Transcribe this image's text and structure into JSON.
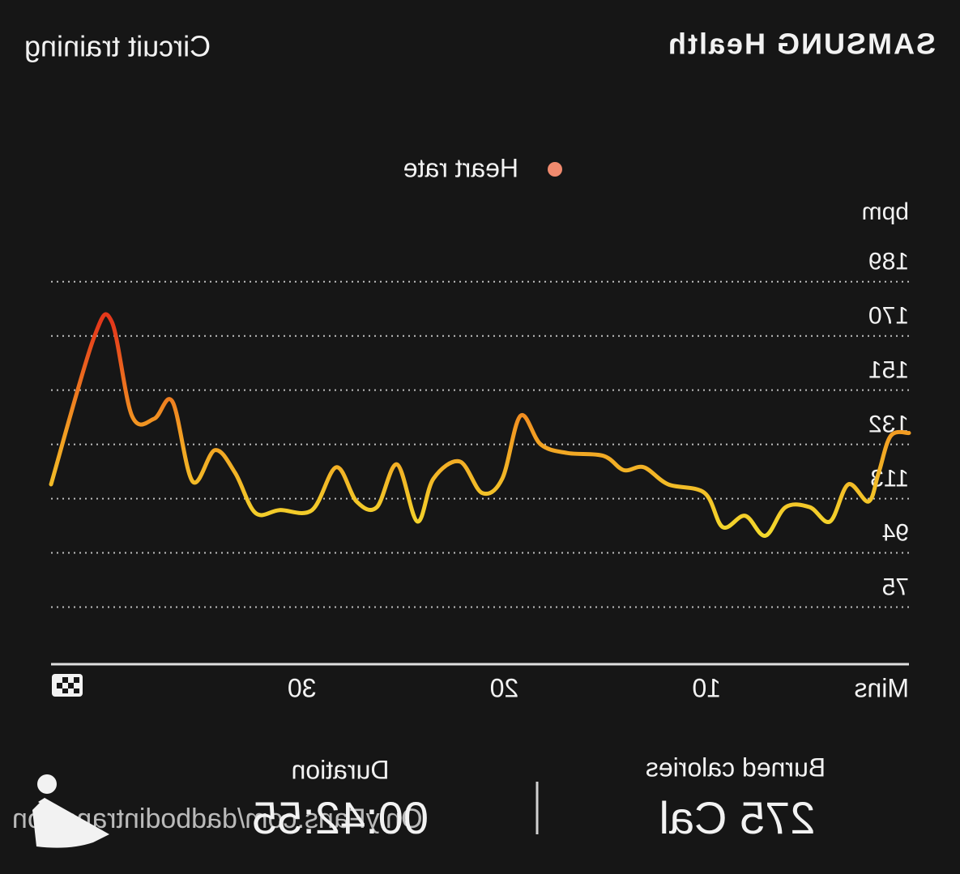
{
  "header": {
    "app": "SAMSUNG Health",
    "workout": "Circuit training"
  },
  "chart_data": {
    "type": "line",
    "y_label": "bpm",
    "x_label": "Mins",
    "x": [
      0,
      0.9,
      1.5,
      2.0,
      3.0,
      3.9,
      4.9,
      6.1,
      7.1,
      8.1,
      9.2,
      10.1,
      11.9,
      13.1,
      14.1,
      15.1,
      16.9,
      18.2,
      19.2,
      20.1,
      21.1,
      22.2,
      23.5,
      24.3,
      25.3,
      26.3,
      27.3,
      28.3,
      29.5,
      31.1,
      32.3,
      33.3,
      34.3,
      35.4,
      36.4,
      37.3,
      38.4,
      39.4,
      40.3,
      42.4
    ],
    "series": [
      {
        "name": "Heart rate",
        "color": "#f08a6e",
        "values": [
          136,
          135,
          122,
          112,
          118,
          105,
          110,
          110,
          100,
          107,
          103,
          115,
          118,
          124,
          123,
          128,
          129,
          132,
          142,
          120,
          115,
          126,
          120,
          105,
          125,
          110,
          112,
          124,
          109,
          109,
          108,
          122,
          130,
          119,
          147,
          141,
          142,
          175,
          169,
          118
        ]
      }
    ],
    "xlim": [
      0,
      42.4
    ],
    "xticks": [
      10,
      20,
      30
    ],
    "ylim": [
      55,
      200
    ],
    "yticks": [
      75,
      94,
      113,
      132,
      151,
      170,
      189
    ],
    "grid": true
  },
  "summary": {
    "calories_label": "Burned calories",
    "calories": "275 Cal",
    "duration_label": "Duration",
    "duration": "00:42:55"
  },
  "watermark": "OnlyFans.com/dadbodintransition"
}
